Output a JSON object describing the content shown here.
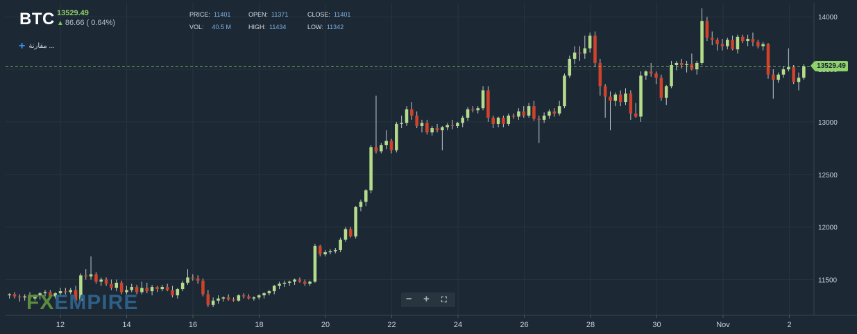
{
  "header": {
    "symbol": "BTC",
    "last_price": "13529.49",
    "change": "86.66 ( 0.64%)",
    "stats": [
      {
        "label": "PRICE:",
        "value": "11401"
      },
      {
        "label": "OPEN:",
        "value": "11371"
      },
      {
        "label": "CLOSE:",
        "value": "11401"
      },
      {
        "label": "VOL:",
        "value": "40.5 M"
      },
      {
        "label": "HIGH:",
        "value": "11434"
      },
      {
        "label": "LOW:",
        "value": "11342"
      }
    ]
  },
  "compare_label": "مقارنة ...",
  "watermark": {
    "part1": "FX",
    "part2": "EMPIRE"
  },
  "zoom_controls": {
    "minus": "−",
    "plus": "+",
    "fullscreen": "⛶"
  },
  "current_price_tag": "13529.49",
  "colors": {
    "background": "#1c2834",
    "bull": "#b5dc8a",
    "bear": "#d0432a",
    "price_line": "#8fd16a",
    "axis_text": "#c9d3dc"
  },
  "chart_data": {
    "type": "candlestick",
    "title": "BTC",
    "x_tick_labels": [
      "12",
      "14",
      "16",
      "18",
      "20",
      "22",
      "24",
      "26",
      "28",
      "30",
      "Nov",
      "2"
    ],
    "y_tick_labels": [
      "11500",
      "12000",
      "12500",
      "13000",
      "13500",
      "14000"
    ],
    "y_ticks": [
      11500,
      12000,
      12500,
      13000,
      13500,
      14000
    ],
    "ylim": [
      11180,
      14120
    ],
    "current_price": 13529.49,
    "grid": true,
    "candles": [
      [
        11350,
        11370,
        11320,
        11360
      ],
      [
        11360,
        11380,
        11320,
        11340
      ],
      [
        11340,
        11360,
        11290,
        11330
      ],
      [
        11330,
        11360,
        11300,
        11340
      ],
      [
        11340,
        11380,
        11300,
        11320
      ],
      [
        11320,
        11360,
        11300,
        11350
      ],
      [
        11350,
        11380,
        11310,
        11370
      ],
      [
        11370,
        11400,
        11340,
        11380
      ],
      [
        11380,
        11400,
        11320,
        11340
      ],
      [
        11340,
        11380,
        11320,
        11370
      ],
      [
        11370,
        11420,
        11340,
        11390
      ],
      [
        11390,
        11420,
        11360,
        11380
      ],
      [
        11380,
        11420,
        11360,
        11400
      ],
      [
        11400,
        11440,
        11280,
        11300
      ],
      [
        11300,
        11560,
        11290,
        11540
      ],
      [
        11540,
        11600,
        11500,
        11530
      ],
      [
        11530,
        11720,
        11500,
        11550
      ],
      [
        11550,
        11570,
        11460,
        11480
      ],
      [
        11480,
        11520,
        11440,
        11500
      ],
      [
        11500,
        11520,
        11440,
        11460
      ],
      [
        11460,
        11500,
        11400,
        11420
      ],
      [
        11420,
        11500,
        11390,
        11470
      ],
      [
        11470,
        11490,
        11360,
        11380
      ],
      [
        11380,
        11440,
        11360,
        11400
      ],
      [
        11400,
        11460,
        11380,
        11430
      ],
      [
        11430,
        11450,
        11360,
        11380
      ],
      [
        11380,
        11480,
        11360,
        11420
      ],
      [
        11420,
        11470,
        11370,
        11390
      ],
      [
        11390,
        11450,
        11350,
        11430
      ],
      [
        11430,
        11440,
        11380,
        11410
      ],
      [
        11410,
        11450,
        11390,
        11430
      ],
      [
        11430,
        11460,
        11390,
        11400
      ],
      [
        11400,
        11440,
        11330,
        11350
      ],
      [
        11350,
        11420,
        11320,
        11410
      ],
      [
        11410,
        11490,
        11390,
        11470
      ],
      [
        11470,
        11600,
        11450,
        11520
      ],
      [
        11520,
        11550,
        11490,
        11510
      ],
      [
        11510,
        11540,
        11460,
        11490
      ],
      [
        11490,
        11510,
        11340,
        11360
      ],
      [
        11360,
        11400,
        11240,
        11260
      ],
      [
        11260,
        11330,
        11240,
        11300
      ],
      [
        11300,
        11350,
        11270,
        11320
      ],
      [
        11320,
        11340,
        11290,
        11330
      ],
      [
        11330,
        11360,
        11300,
        11310
      ],
      [
        11310,
        11330,
        11290,
        11300
      ],
      [
        11300,
        11360,
        11290,
        11350
      ],
      [
        11350,
        11370,
        11320,
        11340
      ],
      [
        11340,
        11360,
        11310,
        11320
      ],
      [
        11320,
        11340,
        11300,
        11330
      ],
      [
        11330,
        11360,
        11310,
        11350
      ],
      [
        11350,
        11380,
        11320,
        11370
      ],
      [
        11370,
        11400,
        11350,
        11390
      ],
      [
        11390,
        11450,
        11360,
        11440
      ],
      [
        11440,
        11480,
        11410,
        11460
      ],
      [
        11460,
        11490,
        11430,
        11470
      ],
      [
        11470,
        11490,
        11440,
        11480
      ],
      [
        11480,
        11510,
        11450,
        11500
      ],
      [
        11500,
        11520,
        11470,
        11480
      ],
      [
        11480,
        11500,
        11440,
        11460
      ],
      [
        11460,
        11490,
        11440,
        11480
      ],
      [
        11480,
        11840,
        11470,
        11820
      ],
      [
        11820,
        11830,
        11720,
        11740
      ],
      [
        11740,
        11780,
        11720,
        11760
      ],
      [
        11760,
        11790,
        11740,
        11770
      ],
      [
        11770,
        11800,
        11750,
        11780
      ],
      [
        11780,
        11900,
        11760,
        11880
      ],
      [
        11880,
        12000,
        11860,
        11980
      ],
      [
        11980,
        12000,
        11900,
        11910
      ],
      [
        11910,
        12200,
        11890,
        12190
      ],
      [
        12190,
        12260,
        12150,
        12240
      ],
      [
        12240,
        12360,
        12200,
        12350
      ],
      [
        12350,
        12780,
        12320,
        12760
      ],
      [
        12760,
        13250,
        12700,
        12720
      ],
      [
        12720,
        12800,
        12700,
        12780
      ],
      [
        12780,
        12920,
        12740,
        12820
      ],
      [
        12820,
        12840,
        12700,
        12730
      ],
      [
        12730,
        13000,
        12710,
        12980
      ],
      [
        12980,
        13060,
        12940,
        12990
      ],
      [
        12990,
        13150,
        12960,
        13120
      ],
      [
        13120,
        13190,
        13020,
        13060
      ],
      [
        13060,
        13100,
        12940,
        12960
      ],
      [
        12960,
        13020,
        12900,
        12990
      ],
      [
        12990,
        13020,
        12880,
        12900
      ],
      [
        12900,
        12960,
        12870,
        12940
      ],
      [
        12940,
        12980,
        12900,
        12920
      ],
      [
        12920,
        12960,
        12730,
        12950
      ],
      [
        12950,
        12990,
        12920,
        12970
      ],
      [
        12970,
        13020,
        12930,
        12960
      ],
      [
        12960,
        13000,
        12940,
        12990
      ],
      [
        12990,
        13060,
        12950,
        13040
      ],
      [
        13040,
        13140,
        13010,
        13120
      ],
      [
        13120,
        13150,
        13090,
        13110
      ],
      [
        13110,
        13150,
        13080,
        13130
      ],
      [
        13130,
        13340,
        13110,
        13300
      ],
      [
        13300,
        13340,
        13000,
        13040
      ],
      [
        13040,
        13060,
        12940,
        12980
      ],
      [
        12980,
        13050,
        12950,
        13040
      ],
      [
        13040,
        13060,
        12950,
        12980
      ],
      [
        12980,
        13080,
        12960,
        13060
      ],
      [
        13060,
        13080,
        13030,
        13050
      ],
      [
        13050,
        13130,
        13020,
        13100
      ],
      [
        13100,
        13150,
        13040,
        13060
      ],
      [
        13060,
        13180,
        13040,
        13150
      ],
      [
        13150,
        13200,
        13010,
        13030
      ],
      [
        13030,
        13060,
        12800,
        13020
      ],
      [
        13020,
        13090,
        12990,
        13060
      ],
      [
        13060,
        13120,
        13030,
        13100
      ],
      [
        13100,
        13130,
        13050,
        13080
      ],
      [
        13080,
        13200,
        13060,
        13150
      ],
      [
        13150,
        13460,
        13130,
        13440
      ],
      [
        13440,
        13630,
        13420,
        13600
      ],
      [
        13600,
        13720,
        13550,
        13660
      ],
      [
        13660,
        13720,
        13580,
        13650
      ],
      [
        13650,
        13820,
        13600,
        13700
      ],
      [
        13700,
        13850,
        13660,
        13820
      ],
      [
        13820,
        13860,
        13520,
        13560
      ],
      [
        13560,
        13600,
        13250,
        13340
      ],
      [
        13340,
        13360,
        13040,
        13240
      ],
      [
        13240,
        13290,
        12920,
        13200
      ],
      [
        13200,
        13280,
        13150,
        13260
      ],
      [
        13260,
        13300,
        13150,
        13190
      ],
      [
        13190,
        13320,
        13160,
        13270
      ],
      [
        13270,
        13300,
        13020,
        13080
      ],
      [
        13080,
        13180,
        13040,
        13050
      ],
      [
        13050,
        13480,
        13000,
        13440
      ],
      [
        13440,
        13490,
        13400,
        13480
      ],
      [
        13480,
        13560,
        13430,
        13460
      ],
      [
        13460,
        13480,
        13360,
        13420
      ],
      [
        13420,
        13450,
        13200,
        13230
      ],
      [
        13230,
        13350,
        13160,
        13340
      ],
      [
        13340,
        13580,
        13320,
        13540
      ],
      [
        13540,
        13580,
        13490,
        13560
      ],
      [
        13560,
        13600,
        13510,
        13540
      ],
      [
        13540,
        13580,
        13470,
        13550
      ],
      [
        13550,
        13650,
        13490,
        13500
      ],
      [
        13500,
        13580,
        13450,
        13560
      ],
      [
        13560,
        14080,
        13540,
        13960
      ],
      [
        13960,
        14000,
        13770,
        13800
      ],
      [
        13800,
        13860,
        13730,
        13780
      ],
      [
        13780,
        13800,
        13680,
        13740
      ],
      [
        13740,
        13790,
        13680,
        13720
      ],
      [
        13720,
        13800,
        13690,
        13780
      ],
      [
        13780,
        13820,
        13680,
        13690
      ],
      [
        13690,
        13830,
        13650,
        13810
      ],
      [
        13810,
        13830,
        13750,
        13770
      ],
      [
        13770,
        13830,
        13720,
        13790
      ],
      [
        13790,
        13850,
        13720,
        13760
      ],
      [
        13760,
        13780,
        13700,
        13720
      ],
      [
        13720,
        13760,
        13680,
        13740
      ],
      [
        13740,
        13750,
        13410,
        13450
      ],
      [
        13450,
        13500,
        13220,
        13400
      ],
      [
        13400,
        13470,
        13370,
        13450
      ],
      [
        13450,
        13530,
        13420,
        13500
      ],
      [
        13500,
        13700,
        13480,
        13520
      ],
      [
        13520,
        13540,
        13360,
        13380
      ],
      [
        13380,
        13470,
        13300,
        13420
      ],
      [
        13420,
        13550,
        13400,
        13529
      ]
    ]
  }
}
